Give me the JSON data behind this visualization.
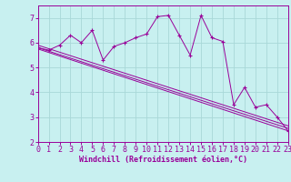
{
  "background_color": "#c8f0f0",
  "grid_color": "#a8d8d8",
  "line_color": "#990099",
  "xlabel": "Windchill (Refroidissement éolien,°C)",
  "xlim": [
    0,
    23
  ],
  "ylim": [
    2,
    7.5
  ],
  "yticks": [
    2,
    3,
    4,
    5,
    6,
    7
  ],
  "xticks": [
    0,
    1,
    2,
    3,
    4,
    5,
    6,
    7,
    8,
    9,
    10,
    11,
    12,
    13,
    14,
    15,
    16,
    17,
    18,
    19,
    20,
    21,
    22,
    23
  ],
  "series1_x": [
    0,
    1,
    2,
    3,
    4,
    5,
    6,
    7,
    8,
    9,
    10,
    11,
    12,
    13,
    14,
    15,
    16,
    17,
    18,
    19,
    20,
    21,
    22,
    23
  ],
  "series1_y": [
    5.8,
    5.7,
    5.9,
    6.3,
    6.0,
    6.5,
    5.3,
    5.85,
    6.0,
    6.2,
    6.35,
    7.05,
    7.1,
    6.3,
    5.5,
    7.1,
    6.2,
    6.05,
    3.5,
    4.2,
    3.4,
    3.5,
    3.0,
    2.45
  ],
  "series2_x": [
    0,
    23
  ],
  "series2_y": [
    5.9,
    2.65
  ],
  "series3_x": [
    0,
    23
  ],
  "series3_y": [
    5.8,
    2.55
  ],
  "series4_x": [
    0,
    23
  ],
  "series4_y": [
    5.75,
    2.45
  ],
  "xlabel_fontsize": 6,
  "tick_fontsize": 6
}
